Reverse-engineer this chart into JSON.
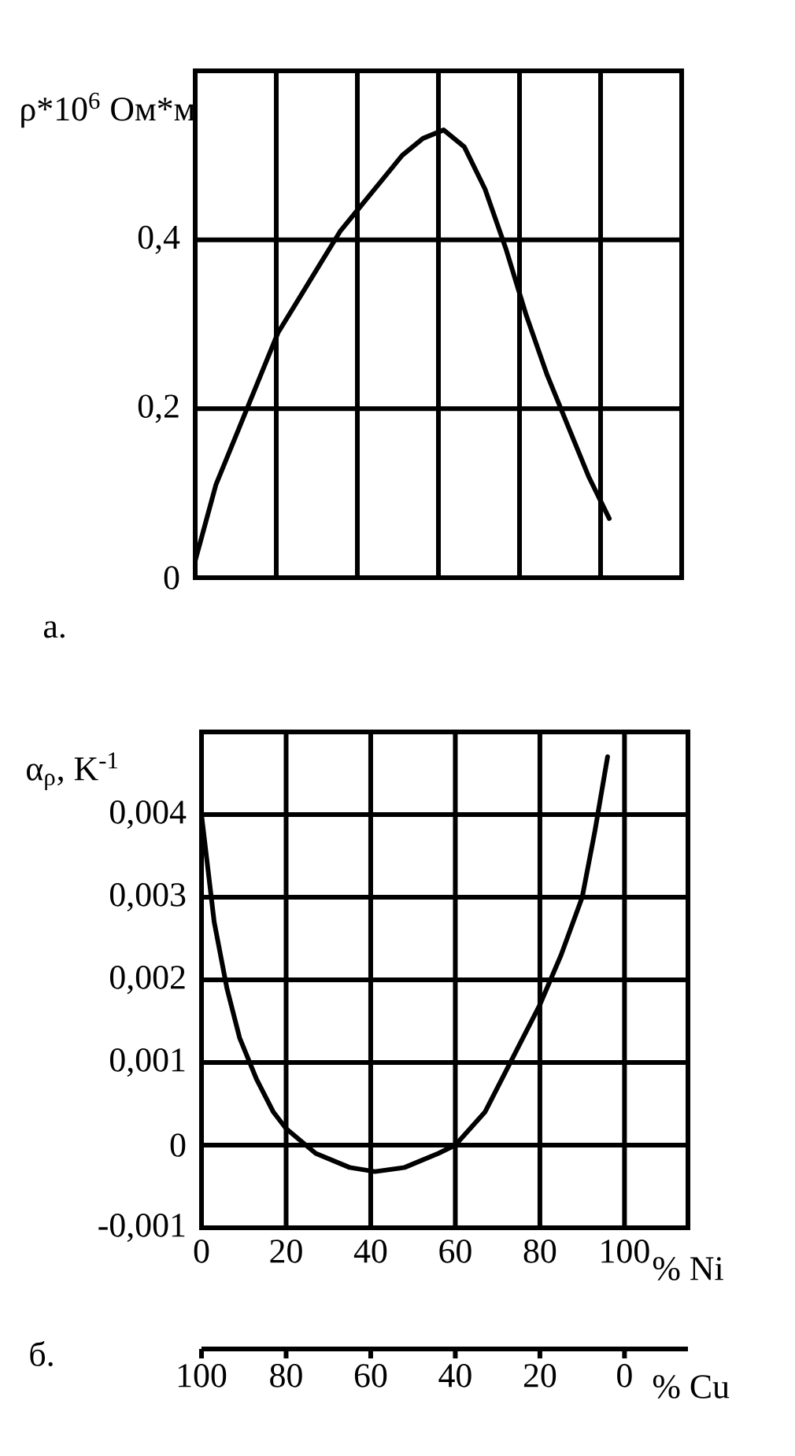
{
  "chart_data": [
    {
      "type": "line",
      "ylabel": "ρ*10$^{6}$ Ом*м",
      "annotations": [
        "а."
      ],
      "categories": [
        null,
        null,
        null,
        null,
        null,
        null,
        null,
        null,
        null,
        null,
        null,
        null,
        null,
        null,
        null,
        null,
        null,
        null,
        null,
        null,
        null
      ],
      "values": [
        0.02,
        0.11,
        0.17,
        0.23,
        0.29,
        0.33,
        0.37,
        0.41,
        0.44,
        0.47,
        0.5,
        0.52,
        0.53,
        0.51,
        0.46,
        0.39,
        0.31,
        0.24,
        0.18,
        0.12,
        0.07
      ],
      "color": "#000000",
      "ylim": [
        0,
        0.6
      ],
      "yticks": [
        0,
        {
          "value": 0.2,
          "label": "0,2"
        },
        {
          "value": 0.4,
          "label": "0,4"
        },
        {
          "value": 0.6,
          "label": null
        }
      ],
      "grid": true,
      "tick_labels": "y",
      "marker": "none",
      "line_style": "solid"
    },
    {
      "type": "line",
      "ylabel": "α$_{ρ}$, K$^{-1}$",
      "xlabel": "% Ni",
      "x2label": "% Cu",
      "annotations": [
        "б."
      ],
      "x": [
        0,
        3,
        6,
        9,
        13,
        17,
        20,
        27,
        35,
        41,
        48,
        56,
        60,
        67,
        73,
        80,
        85,
        90,
        93,
        96
      ],
      "values": [
        0.004,
        0.0027,
        0.0019,
        0.0013,
        0.0008,
        0.0004,
        0.0002,
        -0.0001,
        -0.00027,
        -0.00032,
        -0.00027,
        -0.0001,
        0,
        0.0004,
        0.001,
        0.0017,
        0.0023,
        0.003,
        0.0038,
        0.0047
      ],
      "color": "#000000",
      "xlim": [
        0,
        115
      ],
      "xticks": [
        0,
        20,
        40,
        60,
        80,
        100
      ],
      "x2lim": [
        100,
        -15
      ],
      "x2ticks": [
        100,
        80,
        60,
        40,
        20,
        0
      ],
      "ylim": [
        -0.001,
        0.005
      ],
      "yticks": [
        {
          "value": -0.001,
          "label": "-0,001"
        },
        0,
        {
          "value": 0.001,
          "label": "0,001"
        },
        {
          "value": 0.002,
          "label": "0,002"
        },
        {
          "value": 0.003,
          "label": "0,003"
        },
        {
          "value": 0.004,
          "label": "0,004"
        },
        {
          "value": 0.005,
          "label": null
        }
      ],
      "grid": true,
      "marker": "none",
      "line_style": "solid"
    }
  ]
}
